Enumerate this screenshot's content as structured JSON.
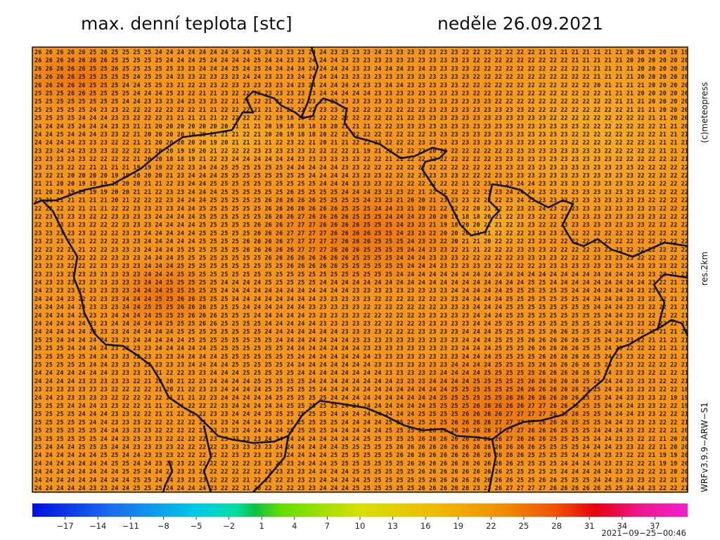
{
  "header": {
    "title": "max. denní teplota [stc]",
    "date": "neděle 26.09.2021"
  },
  "side": {
    "copyright": "(c)meteopress",
    "resolution": "res.2km",
    "model": "WRFv3.9.9−ARW−S1"
  },
  "map": {
    "rows": [
      "26 26 26 26 26 25 26 25 25 25 25 24 24 24 24 24 24 24 24 24 25 24 23 23 23 24 24 23 23 23 23 24 23 23 23 23 23 23 23 22 22 22 22 22 22 22 21 21 21 21 21 21 21 21 20 20 20 20 19 19",
      "26 26 26 26 26 26 26 25 25 25 25 25 24 24 24 25 24 24 24 24 25 24 24 23 23 24 24 24 23 23 23 23 23 23 23 23 23 23 23 23 22 22 22 22 22 22 22 22 22 21 21 21 21 21 20 20 20 20 20 20",
      "26 26 26 26 26 25 25 26 25 25 25 25 25 23 23 24 24 24 25 24 25 24 24 24 24 24 24 24 24 23 23 24 24 24 23 24 23 23 23 23 22 22 22 22 22 22 22 22 22 22 21 21 21 21 21 20 20 20 20 20",
      "26 26 26 26 25 25 25 25 25 24 25 25 24 23 23 22 23 23 23 24 24 23 23 23 24 24 24 24 23 23 23 23 23 23 23 23 23 23 23 23 22 22 22 22 22 22 22 22 22 22 22 21 21 21 21 20 20 20 20 20",
      "26 26 26 26 26 25 25 25 24 24 25 25 23 21 22 23 23 22 23 23 23 23 23 24 23 24 24 24 24 24 23 23 24 24 23 23 23 23 23 22 22 22 22 22 22 22 22 22 22 22 22 20 21 21 21 21 20 20 20 20",
      "25 25 25 26 26 25 25 25 25 24 24 24 25 23 22 21 21 23 22 22 23 23 23 23 23 23 24 24 24 24 24 23 23 23 23 23 23 23 23 23 22 22 22 22 22 22 22 22 22 22 22 22 21 21 21 20 20 20 20 20",
      "25 25 25 25 25 25 25 25 24 24 23 23 23 24 23 23 23 22 21 21 22 21 22 22 22 23 23 23 23 23 23 23 23 23 23 23 23 23 23 23 23 23 22 22 22 22 22 22 22 22 22 22 22 21 21 21 20 20 20 20",
      "25 25 25 25 25 24 23 23 22 22 22 22 22 22 22 21 21 22 22 22 21 21 21 22 22 22 23 23 22 22 22 22 22 22 22 22 23 23 23 23 23 23 23 23 23 22 22 22 22 22 22 22 22 22 21 21 21 20 20 20",
      "25 25 25 25 24 24 24 23 23 22 22 22 21 21 21 21 21 22 22 22 22 22 19 18 18 22 22 22 22 22 22 22 22 21 22 23 23 23 23 23 23 23 23 23 23 23 23 22 22 22 22 22 22 22 22 22 21 21 20 20",
      "24 24 24 25 24 24 24 23 23 21 21 20 20 20 20 20 20 20 21 21 21 20 19 18 18 18 18 20 21 21 21 22 22 23 23 23 23 23 23 23 23 23 23 23 23 23 23 23 23 23 22 22 22 22 22 22 22 21 21 20",
      "24 24 25 24 24 24 23 23 22 21 20 20 20 20 19 20 21 21 21 22 21 20 20 19 18 18 20 22 22 22 22 22 22 22 22 22 23 23 23 23 23 23 23 23 23 23 23 23 23 22 22 22 22 22 22 22 22 21 21 21",
      "24 24 24 24 23 23 23 22 22 21 21 20 20 20 20 20 19 20 21 21 21 21 22 23 22 21 20 21 21 22 22 23 22 22 22 23 23 23 23 23 23 23 23 23 23 23 23 23 23 22 22 22 22 22 22 22 21 21 21 21",
      "23 23 24 24 23 23 23 22 22 22 21 20 20 19 19 20 21 22 22 22 23 23 23 23 23 22 22 22 22 21 19 21 22 22 22 22 20 20 22 22 22 22 22 23 23 23 23 23 23 23 23 23 22 22 22 22 22 21 21 21",
      "23 23 23 23 23 22 22 22 22 21 20 20 18 18 19 21 22 23 24 24 24 24 24 24 23 23 23 23 23 23 22 22 21 21 22 22 22 22 22 22 22 22 23 23 23 23 23 23 23 23 23 23 23 22 22 22 22 22 22 21",
      "23 23 23 22 22 21 21 21 21 19 19 19 22 22 23 24 24 25 25 25 25 25 25 24 24 24 24 24 23 23 22 22 22 22 22 22 22 22 22 22 22 22 23 23 23 23 23 23 23 23 23 23 23 23 23 22 22 22 22 22",
      "23 22 21 20 20 20 20 19 19 20 20 20 21 23 24 24 24 25 25 25 25 25 25 25 25 24 24 24 24 23 23 23 22 22 22 23 23 23 23 22 22 22 23 23 23 23 23 23 23 23 23 23 23 23 23 22 22 22 22 22",
      "21 21 20 20 19 19 19 20 20 20 21 21 22 23 24 24 25 25 25 25 25 25 25 25 25 25 24 24 24 23 23 23 22 22 22 22 22 22 22 21 22 23 23 23 24 24 23 23 23 23 23 23 23 23 23 22 22 22 22 22",
      "21 20 20 19 19 19 19 20 20 21 21 22 23 23 24 24 24 25 25 25 25 25 25 26 25 25 25 25 24 24 24 23 23 23 22 21 22 22 22 22 22 23 23 24 24 24 23 23 23 23 23 23 23 23 23 23 22 22 22 22",
      "23 21 21 21 21 21 21 20 21 22 22 22 23 24 24 24 25 25 25 25 25 26 26 26 26 26 25 25 25 25 24 23 23 21 20 20 21 23 23 23 22 22 22 23 24 23 23 23 23 23 23 23 23 23 23 23 22 22 22 22",
      "22 22 22 22 21 21 21 22 22 23 23 23 23 24 24 25 25 25 25 25 25 26 26 26 26 26 26 26 25 25 25 24 24 23 21 20 21 22 22 22 20 21 22 22 23 23 24 23 23 23 23 23 23 23 23 23 23 22 22 22",
      "22 23 23 23 23 22 22 23 23 23 23 24 24 24 24 25 25 25 25 25 25 26 26 26 27 26 26 26 26 25 25 25 24 24 24 23 20 20 19 18 18 20 21 22 23 23 22 22 23 23 23 23 23 23 23 23 23 22 22 22",
      "22 23 23 23 23 22 22 22 23 23 23 24 24 24 24 25 25 25 25 25 26 26 26 27 27 27 26 26 26 26 25 25 25 24 23 23 21 19 18 20 20 21 21 22 23 23 22 22 23 23 23 23 23 23 23 23 22 22 22 22",
      "23 23 23 23 23 22 22 22 23 23 24 24 24 24 24 25 25 25 25 25 26 26 26 27 27 27 27 26 26 26 26 25 25 24 23 23 22 20 20 20 21 21 22 22 22 23 23 23 23 22 22 22 22 22 22 22 22 22 22 22",
      "23 23 23 23 21 22 22 22 23 23 24 24 24 24 24 25 25 25 25 26 26 26 26 27 27 27 27 27 26 26 26 25 25 25 24 23 23 22 20 21 21 20 22 22 22 23 23 22 22 22 22 22 22 22 22 22 22 22 22 22",
      "22 22 22 21 21 22 22 23 23 23 24 24 24 25 25 25 25 25 25 26 26 26 26 26 27 27 27 26 26 26 25 25 25 25 24 24 23 23 22 21 21 22 22 22 23 23 23 22 22 22 22 23 23 23 22 22 22 22 22 22",
      "23 23 22 22 22 22 22 23 23 23 24 24 24 25 25 25 25 25 25 25 25 26 26 26 26 26 26 26 26 25 25 25 25 24 24 24 23 23 23 22 22 22 22 22 23 23 23 23 22 22 22 23 23 23 23 22 22 22 22 22",
      "23 23 23 22 22 22 23 23 23 23 24 24 24 25 25 25 25 25 25 25 25 25 25 26 26 26 26 26 25 25 25 25 25 25 24 24 24 23 23 23 23 23 22 22 22 22 23 23 23 23 23 23 23 23 24 23 23 23 22 22",
      "23 23 23 23 23 23 23 23 23 23 24 24 24 25 25 25 25 25 25 25 25 25 25 25 25 25 25 25 25 25 25 25 25 24 24 24 24 24 24 24 24 24 24 24 24 24 24 24 24 24 24 24 24 24 24 23 23 22 21 21",
      "24 23 23 23 23 23 23 23 23 23 24 24 25 25 25 25 25 24 24 24 24 25 25 25 25 25 24 24 24 24 24 24 24 24 24 24 24 24 24 24 24 24 24 24 24 25 25 24 24 24 24 24 24 24 24 24 23 22 21 21",
      "24 23 23 23 22 23 23 23 23 24 24 24 25 25 25 25 25 24 24 24 24 24 24 24 24 24 24 24 24 23 23 23 23 23 23 23 23 23 24 24 24 24 24 25 25 25 25 25 25 24 24 24 24 24 24 23 23 22 21 21",
      "24 24 24 23 22 22 23 23 24 24 24 25 25 26 26 25 25 25 24 24 24 24 24 24 24 24 23 23 23 23 23 22 22 22 22 22 22 23 23 24 24 24 24 25 25 25 25 25 25 25 24 24 24 24 23 23 22 22 21 21",
      "24 24 24 24 23 23 23 23 24 24 25 25 25 26 26 26 25 25 25 24 24 24 24 24 24 23 23 23 23 23 22 22 22 22 22 22 22 23 23 23 24 24 24 25 25 25 25 25 25 25 25 24 24 24 23 23 22 22 21 21",
      "24 24 24 24 23 23 23 24 24 24 24 25 25 25 26 26 26 25 25 25 24 24 24 24 24 23 23 23 23 23 22 22 22 22 22 23 23 23 23 23 24 24 24 25 25 25 25 25 25 25 25 25 24 24 23 23 22 22 22 21",
      "24 24 24 24 24 23 23 24 24 24 24 24 25 25 25 26 26 25 25 25 25 24 24 24 24 24 23 23 23 23 23 22 22 22 22 23 23 23 23 23 24 24 25 25 25 25 25 25 25 25 25 25 24 24 23 23 22 22 22 21",
      "24 24 24 24 24 23 23 23 24 24 24 24 24 25 25 25 25 25 25 25 25 24 24 24 24 24 24 24 23 23 23 23 22 22 22 23 23 23 23 24 24 24 25 25 25 25 25 26 26 25 25 25 24 24 23 22 21 21 21 21",
      "25 25 24 24 24 24 24 23 23 24 24 24 24 24 25 25 25 25 25 25 25 25 24 24 24 24 24 24 24 23 23 23 23 23 23 23 23 23 23 24 24 24 25 25 25 26 26 26 26 26 25 25 24 24 23 22 21 21 21 21",
      "25 25 25 24 24 24 24 23 23 23 23 24 24 24 24 24 25 25 25 25 25 25 25 24 24 24 24 24 24 24 23 23 23 23 23 23 23 23 23 24 24 24 25 25 25 26 26 26 26 26 25 25 24 23 22 22 22 21 21 21",
      "25 25 25 25 25 24 24 23 23 22 23 23 23 24 24 24 24 25 25 25 25 25 25 25 24 24 24 24 24 24 24 23 23 23 23 23 23 23 23 24 24 24 25 25 25 25 26 26 26 26 26 25 24 23 23 22 22 22 21 21",
      "25 25 25 25 25 24 24 23 23 23 22 23 23 23 24 24 24 24 25 25 25 25 25 24 24 24 24 24 24 24 24 23 23 23 23 23 23 23 24 24 24 24 25 25 25 25 26 26 26 26 26 25 24 23 23 22 22 22 22 21",
      "24 24 24 24 24 24 24 23 23 23 21 21 22 22 23 23 24 24 24 25 25 25 25 25 24 24 24 24 24 24 24 24 23 23 23 23 23 24 24 24 24 25 25 25 25 25 26 26 26 26 26 25 24 23 23 23 22 22 22 21",
      "24 24 24 24 23 23 23 23 23 22 21 20 20 21 22 23 24 24 24 24 25 25 25 25 25 24 24 24 24 24 24 24 24 23 23 23 24 24 24 24 25 25 25 25 25 26 26 26 26 26 25 25 24 24 23 23 23 22 22 21",
      "23 23 23 23 23 23 23 22 22 22 22 21 20 21 22 23 23 24 24 24 24 25 25 25 25 25 24 24 24 24 24 24 24 24 24 24 24 24 25 25 25 25 25 25 26 26 26 26 26 26 25 25 24 24 23 23 23 22 22 18",
      "24 24 23 23 23 23 23 22 22 22 22 22 21 21 21 22 23 24 24 24 24 24 25 25 25 25 25 24 24 24 24 24 24 24 24 24 24 25 25 25 25 25 25 26 26 26 26 26 26 26 25 25 24 24 23 23 23 22 19 19",
      "25 25 25 24 24 24 23 23 22 22 21 21 21 21 22 22 22 23 24 24 24 24 24 25 25 25 25 25 24 24 24 24 24 24 24 24 25 25 25 25 26 26 26 26 26 27 27 26 26 26 25 25 24 24 24 23 23 22 22 19",
      "25 25 25 25 24 24 24 23 23 22 22 21 21 22 22 22 23 23 24 24 24 25 25 25 25 25 25 24 24 24 24 24 24 24 24 25 25 25 25 26 26 26 26 27 27 27 27 26 26 26 25 25 24 24 24 23 23 22 22 21",
      "25 25 25 25 25 24 24 23 23 23 22 22 22 22 22 23 23 23 24 24 24 24 25 25 25 25 25 25 24 24 24 24 25 25 25 25 25 25 26 26 26 26 27 27 27 27 26 26 26 25 25 25 24 24 23 23 23 22 22 21",
      "25 25 25 25 25 25 24 24 23 23 23 22 22 22 22 23 23 23 23 24 24 24 24 25 25 25 25 24 24 24 24 24 25 25 25 25 26 26 26 26 26 26 27 27 27 26 26 26 25 25 25 24 24 24 23 23 22 22 21 20",
      "25 25 25 25 25 25 24 24 23 23 23 23 22 22 22 22 23 23 23 23 23 24 24 24 24 24 24 24 24 24 25 25 25 25 25 26 26 26 26 26 26 26 26 27 26 26 26 25 25 25 25 24 24 23 23 22 22 21 20 20",
      "25 24 24 24 25 25 25 24 24 23 23 23 23 22 22 22 22 23 23 23 23 23 24 24 24 24 24 24 25 25 25 25 25 26 26 26 26 26 26 26 26 26 26 26 26 26 25 25 25 25 24 24 24 23 23 22 22 21 20 20",
      "24 24 24 24 24 24 25 25 24 24 23 23 23 22 22 22 22 22 23 23 23 23 23 24 24 24 24 25 25 25 25 25 25 26 26 26 26 26 26 26 26 26 26 26 26 25 25 25 25 24 24 24 23 23 22 22 21 19 19 20",
      "24 24 24 24 24 24 24 25 25 24 24 23 23 23 22 22 22 22 22 22 23 23 23 23 24 24 24 25 25 25 25 25 25 25 26 26 26 26 26 26 26 26 26 26 25 25 25 25 24 24 24 24 23 23 22 22 21 19 19 20",
      "24 24 24 24 24 24 24 24 25 25 24 24 23 23 23 22 22 22 22 22 22 23 23 23 23 24 24 24 24 25 25 25 25 25 25 26 26 26 26 26 26 26 26 25 25 25 25 25 24 24 24 24 24 23 23 22 22 21 20 20",
      "24 24 24 24 24 24 24 24 24 25 25 24 24 23 23 23 22 22 22 21 22 22 22 23 23 23 24 24 24 24 25 25 25 25 25 25 26 26 26 26 26 26 26 26 25 25 26 26 25 25 25 24 24 24 23 23 22 22 21 20",
      "24 24 24 24 24 23 23 24 24 25 25 25 24 24 24 24 23 22 22 21 20 22 22 22 23 23 24 24 24 25 25 25 25 25 25 26 26 26 26 26 23 23 26 27 27 27 27 26 26 26 26 26 25 25 24 24 23 22 22 21"
    ]
  },
  "colorbar": {
    "lim": [
      -20,
      40
    ],
    "ticks": [
      {
        "value": -17,
        "label": "−17"
      },
      {
        "value": -14,
        "label": "−14"
      },
      {
        "value": -11,
        "label": "−11"
      },
      {
        "value": -8,
        "label": "−8"
      },
      {
        "value": -5,
        "label": "−5"
      },
      {
        "value": -2,
        "label": "−2"
      },
      1,
      4,
      7,
      10,
      13,
      16,
      19,
      22,
      25,
      28,
      31,
      34,
      37
    ]
  },
  "footer": {
    "timestamp": "2021−09−25−00:46"
  }
}
